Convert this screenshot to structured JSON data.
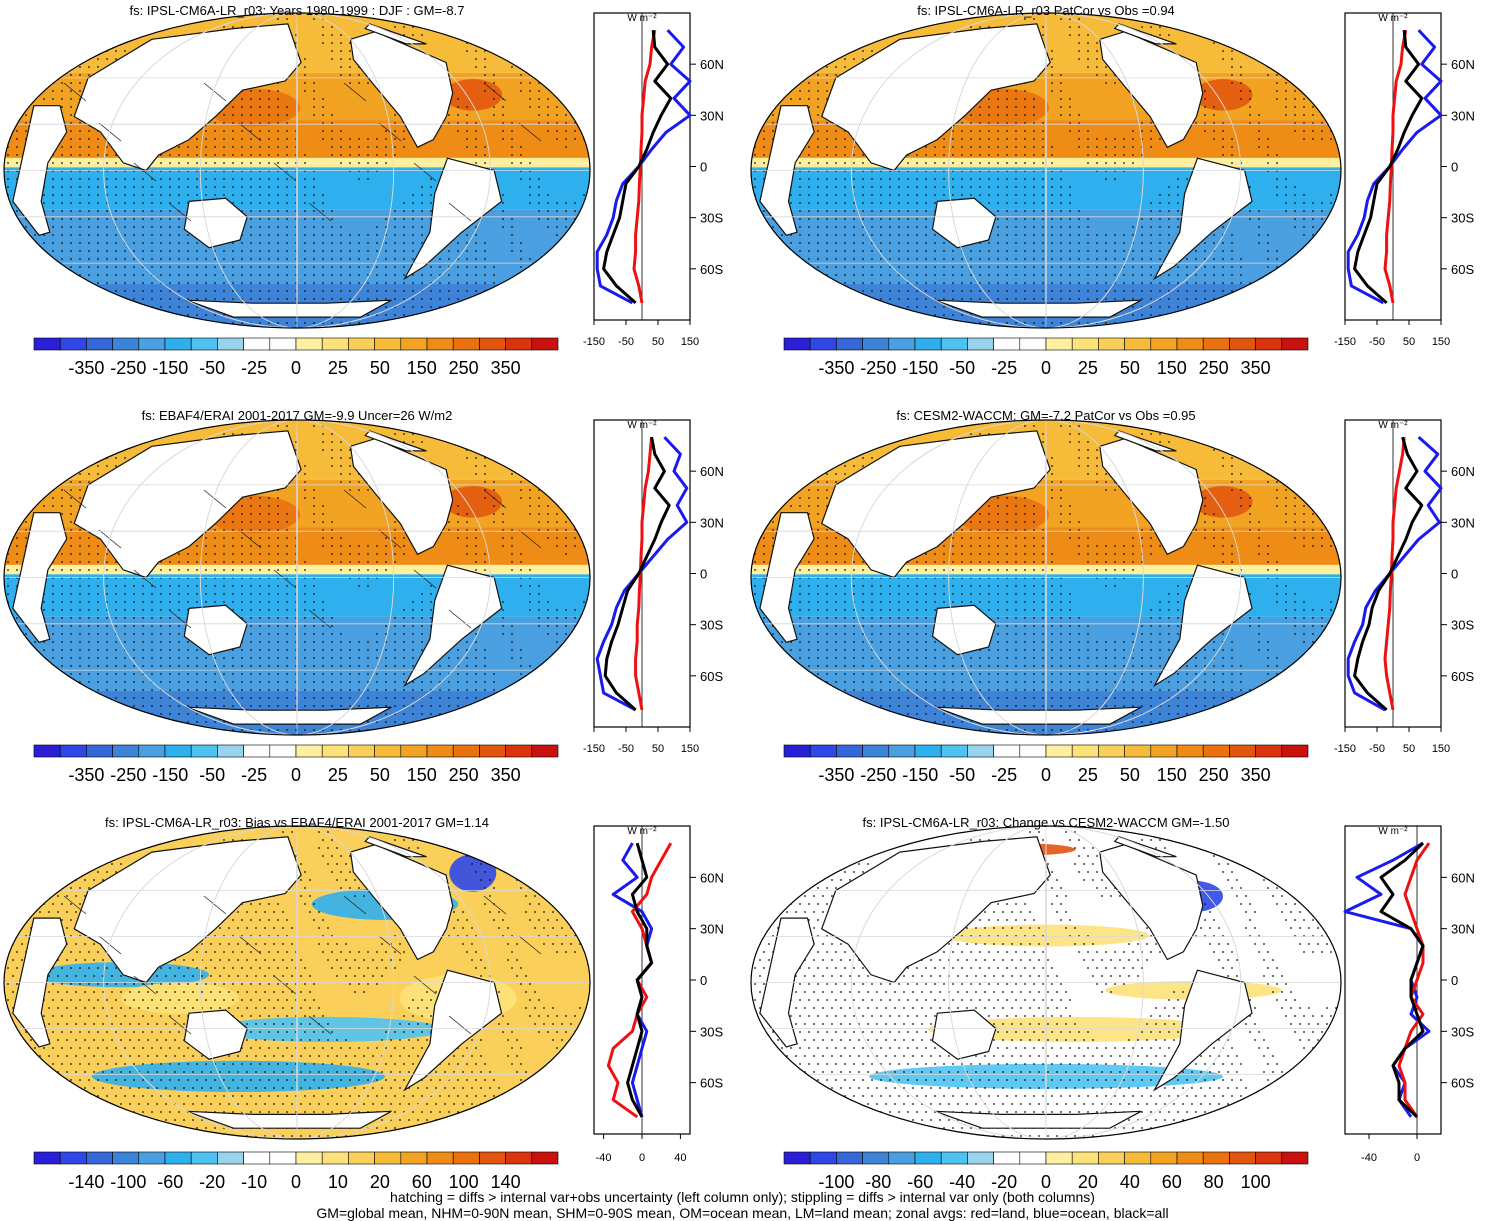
{
  "colors": {
    "land_zonal": "#ee1111",
    "ocean_zonal": "#1a1aee",
    "all_zonal": "#000000",
    "land_fill": "#ffffff",
    "coast": "#111111",
    "grid": "#d8d8d8"
  },
  "colorbar_palette": [
    "#2a1fd6",
    "#2f47e8",
    "#3567d8",
    "#3d84d8",
    "#4a9fe0",
    "#2fb0ee",
    "#4ec3f2",
    "#98d4ee",
    "#ffffff",
    "#ffffff",
    "#fff0a0",
    "#fde27a",
    "#fbd05a",
    "#f7bb3a",
    "#f2a321",
    "#ee8c15",
    "#e9720e",
    "#e3540e",
    "#dc330f",
    "#c9110f"
  ],
  "chart_data": [
    {
      "type": "heatmap",
      "title": "fs: IPSL-CM6A-LR_r03: Years 1980-1999 : DJF : GM=-8.7",
      "pattern": "clim",
      "hatching": true,
      "colorbar_labels": [
        "-350",
        "-250",
        "-150",
        "-50",
        "-25",
        "0",
        "25",
        "50",
        "150",
        "250",
        "350"
      ],
      "zonal": {
        "unit_label": "W m⁻²",
        "xlim": [
          -150,
          150
        ],
        "xticks": [
          "-150",
          "-50",
          "50",
          "150"
        ],
        "yticks": [
          "60N",
          "30N",
          "0",
          "30S",
          "60S"
        ],
        "lat": [
          80,
          70,
          60,
          50,
          40,
          30,
          20,
          10,
          0,
          -10,
          -20,
          -30,
          -40,
          -50,
          -60,
          -70,
          -80
        ],
        "land": [
          40,
          30,
          25,
          10,
          5,
          0,
          0,
          -3,
          -5,
          -8,
          -10,
          -15,
          -20,
          -20,
          -25,
          -10,
          0
        ],
        "ocean": [
          80,
          130,
          90,
          150,
          100,
          150,
          75,
          30,
          -10,
          -60,
          -80,
          -90,
          -110,
          -140,
          -140,
          -130,
          -30
        ],
        "all": [
          35,
          40,
          80,
          40,
          90,
          60,
          35,
          15,
          -10,
          -50,
          -60,
          -70,
          -90,
          -110,
          -120,
          -80,
          -20
        ]
      }
    },
    {
      "type": "heatmap",
      "title": "fs: IPSL-CM6A-LR_r03 PatCor vs Obs =0.94",
      "pattern": "clim",
      "hatching": false,
      "colorbar_labels": [
        "-350",
        "-250",
        "-150",
        "-50",
        "-25",
        "0",
        "25",
        "50",
        "150",
        "250",
        "350"
      ],
      "zonal": {
        "unit_label": "W m⁻²",
        "xlim": [
          -150,
          150
        ],
        "xticks": [
          "-150",
          "-50",
          "50",
          "150"
        ],
        "yticks": [
          "60N",
          "30N",
          "0",
          "30S",
          "60S"
        ],
        "lat": [
          80,
          70,
          60,
          50,
          40,
          30,
          20,
          10,
          0,
          -10,
          -20,
          -30,
          -40,
          -50,
          -60,
          -70,
          -80
        ],
        "land": [
          40,
          30,
          25,
          10,
          5,
          0,
          0,
          -3,
          -5,
          -8,
          -10,
          -15,
          -20,
          -20,
          -25,
          -10,
          0
        ],
        "ocean": [
          80,
          130,
          90,
          150,
          100,
          150,
          75,
          30,
          -10,
          -60,
          -80,
          -90,
          -110,
          -140,
          -140,
          -130,
          -30
        ],
        "all": [
          35,
          40,
          80,
          40,
          90,
          60,
          35,
          15,
          -10,
          -50,
          -60,
          -70,
          -90,
          -110,
          -120,
          -80,
          -20
        ]
      }
    },
    {
      "type": "heatmap",
      "title": "fs: EBAF4/ERAI 2001-2017 GM=-9.9 Uncer=26 W/m2",
      "pattern": "clim",
      "hatching": true,
      "colorbar_labels": [
        "-350",
        "-250",
        "-150",
        "-50",
        "-25",
        "0",
        "25",
        "50",
        "150",
        "250",
        "350"
      ],
      "zonal": {
        "unit_label": "W m⁻²",
        "xlim": [
          -150,
          150
        ],
        "xticks": [
          "-150",
          "-50",
          "50",
          "150"
        ],
        "yticks": [
          "60N",
          "30N",
          "0",
          "30S",
          "60S"
        ],
        "lat": [
          80,
          70,
          60,
          50,
          40,
          30,
          20,
          10,
          0,
          -10,
          -20,
          -30,
          -40,
          -50,
          -60,
          -70,
          -80
        ],
        "land": [
          30,
          25,
          20,
          10,
          5,
          0,
          0,
          -3,
          -5,
          -8,
          -10,
          -15,
          -15,
          -20,
          -20,
          -10,
          0
        ],
        "ocean": [
          70,
          120,
          100,
          140,
          110,
          140,
          80,
          35,
          -10,
          -55,
          -80,
          -95,
          -120,
          -140,
          -130,
          -120,
          -20
        ],
        "all": [
          30,
          40,
          70,
          40,
          85,
          60,
          40,
          15,
          -10,
          -45,
          -60,
          -75,
          -95,
          -110,
          -115,
          -80,
          -20
        ]
      }
    },
    {
      "type": "heatmap",
      "title": "fs: CESM2-WACCM: GM=-7.2 PatCor vs Obs =0.95",
      "pattern": "clim",
      "hatching": false,
      "colorbar_labels": [
        "-350",
        "-250",
        "-150",
        "-50",
        "-25",
        "0",
        "25",
        "50",
        "150",
        "250",
        "350"
      ],
      "zonal": {
        "unit_label": "W m⁻²",
        "xlim": [
          -150,
          150
        ],
        "xticks": [
          "-150",
          "-50",
          "50",
          "150"
        ],
        "yticks": [
          "60N",
          "30N",
          "0",
          "30S",
          "60S"
        ],
        "lat": [
          80,
          70,
          60,
          50,
          40,
          30,
          20,
          10,
          0,
          -10,
          -20,
          -30,
          -40,
          -50,
          -60,
          -70,
          -80
        ],
        "land": [
          35,
          30,
          20,
          10,
          5,
          0,
          0,
          -3,
          -5,
          -8,
          -10,
          -15,
          -20,
          -25,
          -20,
          -10,
          0
        ],
        "ocean": [
          80,
          140,
          100,
          150,
          110,
          145,
          80,
          35,
          -10,
          -55,
          -85,
          -95,
          -120,
          -140,
          -140,
          -120,
          -25
        ],
        "all": [
          30,
          45,
          75,
          40,
          90,
          60,
          40,
          15,
          -10,
          -45,
          -65,
          -75,
          -95,
          -110,
          -120,
          -80,
          -20
        ]
      }
    },
    {
      "type": "heatmap",
      "title": "fs: IPSL-CM6A-LR_r03: Bias vs EBAF4/ERAI 2001-2017 GM=1.14",
      "pattern": "bias",
      "hatching": true,
      "colorbar_labels": [
        "-140",
        "-100",
        "-60",
        "-20",
        "-10",
        "0",
        "10",
        "20",
        "60",
        "100",
        "140"
      ],
      "zonal": {
        "unit_label": "W m⁻²",
        "xlim": [
          -50,
          50
        ],
        "xticks": [
          "-40",
          "0",
          "40"
        ],
        "yticks": [
          "60N",
          "30N",
          "0",
          "30S",
          "60S"
        ],
        "lat": [
          80,
          70,
          60,
          50,
          40,
          30,
          20,
          10,
          0,
          -10,
          -20,
          -30,
          -40,
          -50,
          -60,
          -70,
          -80
        ],
        "land": [
          30,
          20,
          10,
          5,
          -10,
          0,
          5,
          10,
          -5,
          5,
          -5,
          -10,
          -30,
          -35,
          -25,
          -30,
          -5
        ],
        "ocean": [
          -10,
          -20,
          -5,
          -30,
          0,
          10,
          5,
          10,
          -5,
          0,
          -5,
          5,
          0,
          -5,
          -10,
          -5,
          0
        ],
        "all": [
          -5,
          0,
          5,
          -10,
          -5,
          5,
          5,
          10,
          -5,
          0,
          -5,
          0,
          -5,
          -10,
          -15,
          -10,
          0
        ]
      }
    },
    {
      "type": "heatmap",
      "title": "fs: IPSL-CM6A-LR_r03: Change vs CESM2-WACCM GM=-1.50",
      "pattern": "change",
      "hatching": false,
      "colorbar_labels": [
        "-100",
        "-80",
        "-60",
        "-40",
        "-20",
        "0",
        "20",
        "40",
        "60",
        "80",
        "100"
      ],
      "zonal": {
        "unit_label": "W m⁻²",
        "xlim": [
          -60,
          20
        ],
        "xticks": [
          "-40",
          "0"
        ],
        "yticks": [
          "60N",
          "30N",
          "0",
          "30S",
          "60S"
        ],
        "lat": [
          80,
          70,
          60,
          50,
          40,
          30,
          20,
          10,
          0,
          -10,
          -20,
          -30,
          -40,
          -50,
          -60,
          -70,
          -80
        ],
        "land": [
          10,
          0,
          -5,
          -10,
          -5,
          0,
          5,
          5,
          0,
          -5,
          5,
          -5,
          -10,
          -15,
          -10,
          -10,
          0
        ],
        "ocean": [
          5,
          -20,
          -50,
          -30,
          -60,
          -5,
          5,
          0,
          -5,
          0,
          -5,
          10,
          -10,
          -20,
          -10,
          -15,
          -5
        ],
        "all": [
          5,
          -10,
          -30,
          -20,
          -30,
          -5,
          5,
          0,
          -5,
          -5,
          0,
          5,
          -10,
          -20,
          -15,
          -15,
          0
        ]
      }
    }
  ],
  "footnote": {
    "line1": "hatching = diffs > internal var+obs uncertainty (left column only); stippling = diffs > internal var only (both columns)",
    "line2": "GM=global mean, NHM=0-90N mean, SHM=0-90S mean, OM=ocean mean, LM=land mean; zonal avgs: red=land, blue=ocean, black=all"
  }
}
